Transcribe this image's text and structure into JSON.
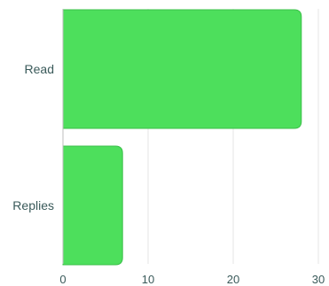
{
  "chart_data": {
    "type": "bar",
    "orientation": "horizontal",
    "categories": [
      "Read",
      "Replies"
    ],
    "values": [
      28,
      7
    ],
    "xlim": [
      0,
      30
    ],
    "x_ticks": [
      0,
      10,
      20,
      30
    ],
    "title": "",
    "xlabel": "",
    "ylabel": "",
    "grid": "vertical",
    "legend": "none",
    "colors": {
      "bar_fill": "#4ddf5c",
      "bar_stroke": "#3bbf4a",
      "grid": "#e6e6e6",
      "label": "#3a5a5a"
    }
  }
}
